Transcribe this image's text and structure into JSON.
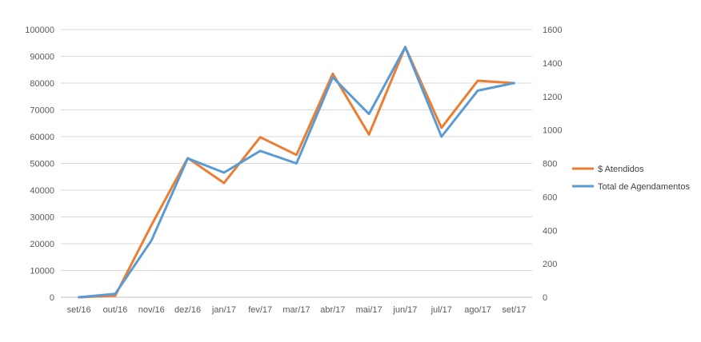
{
  "chart_data": {
    "type": "line",
    "categories": [
      "set/16",
      "out/16",
      "nov/16",
      "dez/16",
      "jan/17",
      "fev/17",
      "mar/17",
      "abr/17",
      "mai/17",
      "jun/17",
      "jul/17",
      "ago/17",
      "set/17"
    ],
    "series": [
      {
        "name": "$ Atendidos",
        "axis": "left",
        "color": "#ED7D31",
        "values": [
          0,
          600,
          27000,
          52000,
          42700,
          59800,
          53200,
          83500,
          60800,
          93500,
          63300,
          80900,
          80000
        ]
      },
      {
        "name": "Total de Agendamentos",
        "axis": "right",
        "color": "#5B9BD5",
        "values": [
          0,
          20,
          340,
          830,
          745,
          875,
          800,
          1315,
          1095,
          1495,
          960,
          1235,
          1280
        ]
      }
    ],
    "y_left": {
      "ylim": [
        0,
        100000
      ],
      "ticks": [
        "0",
        "10000",
        "20000",
        "30000",
        "40000",
        "50000",
        "60000",
        "70000",
        "80000",
        "90000",
        "100000"
      ]
    },
    "y_right": {
      "ylim": [
        0,
        1600
      ],
      "ticks": [
        "0",
        "200",
        "400",
        "600",
        "800",
        "1000",
        "1200",
        "1400",
        "1600"
      ]
    },
    "grid": true,
    "legend_position": "right"
  }
}
